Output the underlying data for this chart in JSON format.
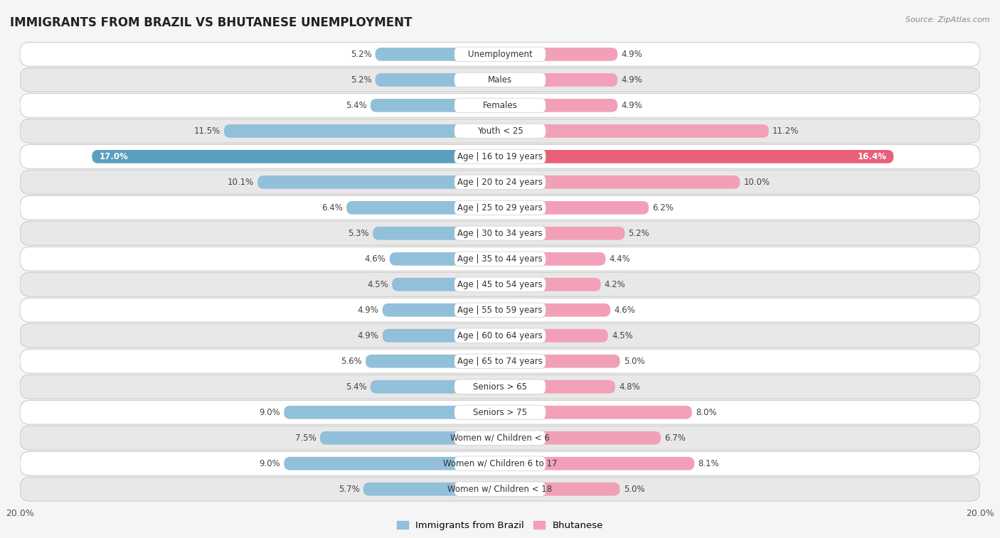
{
  "title": "IMMIGRANTS FROM BRAZIL VS BHUTANESE UNEMPLOYMENT",
  "source": "Source: ZipAtlas.com",
  "categories": [
    "Unemployment",
    "Males",
    "Females",
    "Youth < 25",
    "Age | 16 to 19 years",
    "Age | 20 to 24 years",
    "Age | 25 to 29 years",
    "Age | 30 to 34 years",
    "Age | 35 to 44 years",
    "Age | 45 to 54 years",
    "Age | 55 to 59 years",
    "Age | 60 to 64 years",
    "Age | 65 to 74 years",
    "Seniors > 65",
    "Seniors > 75",
    "Women w/ Children < 6",
    "Women w/ Children 6 to 17",
    "Women w/ Children < 18"
  ],
  "brazil_values": [
    5.2,
    5.2,
    5.4,
    11.5,
    17.0,
    10.1,
    6.4,
    5.3,
    4.6,
    4.5,
    4.9,
    4.9,
    5.6,
    5.4,
    9.0,
    7.5,
    9.0,
    5.7
  ],
  "bhutan_values": [
    4.9,
    4.9,
    4.9,
    11.2,
    16.4,
    10.0,
    6.2,
    5.2,
    4.4,
    4.2,
    4.6,
    4.5,
    5.0,
    4.8,
    8.0,
    6.7,
    8.1,
    5.0
  ],
  "brazil_color": "#92bfda",
  "bhutan_color": "#f2a0b8",
  "brazil_highlight": "#5a9fc0",
  "bhutan_highlight": "#e8607a",
  "brazil_label": "Immigrants from Brazil",
  "bhutan_label": "Bhutanese",
  "xlim": 20.0,
  "bg_color": "#f5f5f5",
  "row_light": "#ffffff",
  "row_dark": "#e8e8e8",
  "title_fontsize": 12,
  "label_fontsize": 8.5,
  "value_fontsize": 8.5,
  "axis_label_fontsize": 9
}
